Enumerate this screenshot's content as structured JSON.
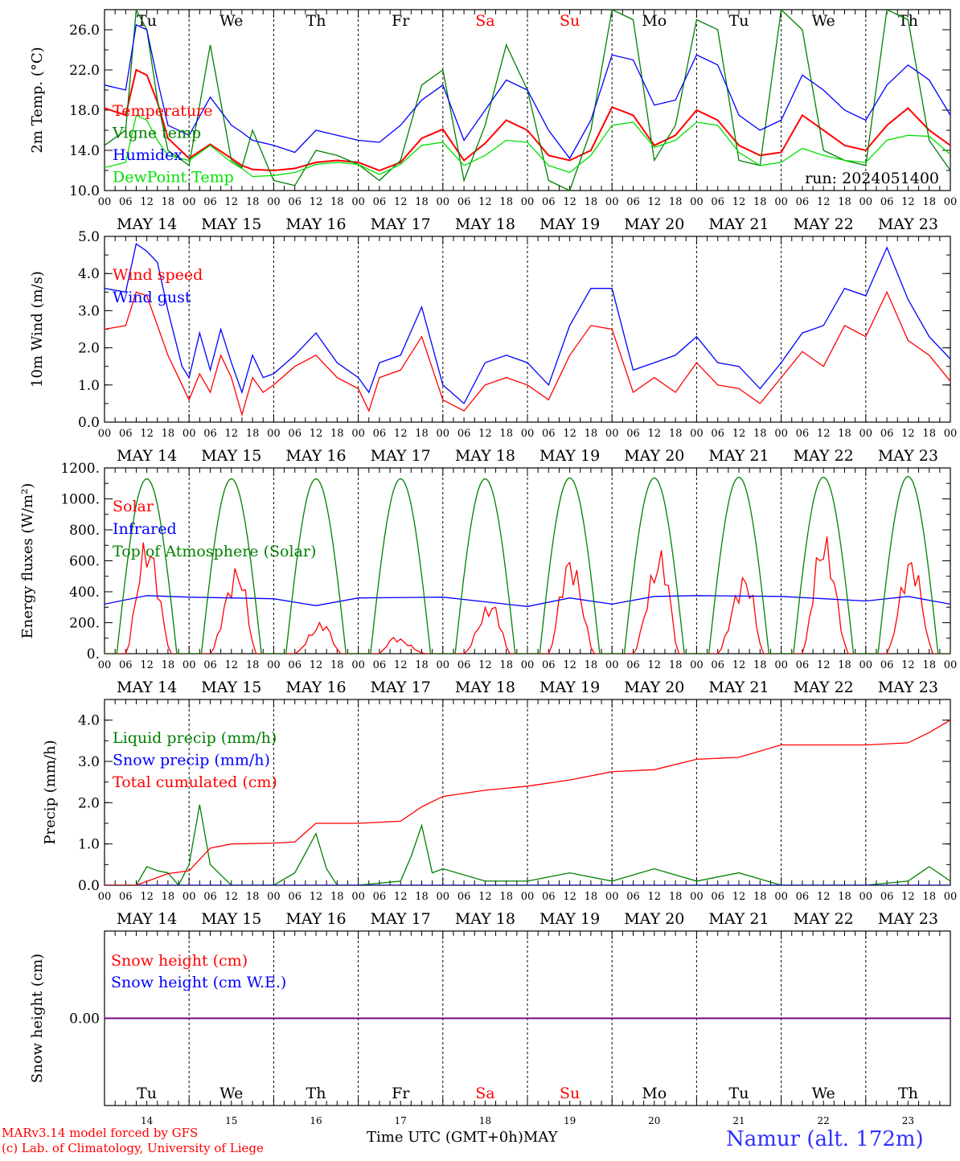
{
  "run_label": "run: 2024051400",
  "days": [
    {
      "dow": "Tu",
      "date": "MAY 14",
      "num": "14",
      "weekend": false
    },
    {
      "dow": "We",
      "date": "MAY 15",
      "num": "15",
      "weekend": false
    },
    {
      "dow": "Th",
      "date": "MAY 16",
      "num": "16",
      "weekend": false
    },
    {
      "dow": "Fr",
      "date": "MAY 17",
      "num": "17",
      "weekend": false
    },
    {
      "dow": "Sa",
      "date": "MAY 18",
      "num": "18",
      "weekend": true
    },
    {
      "dow": "Su",
      "date": "MAY 19",
      "num": "19",
      "weekend": true
    },
    {
      "dow": "Mo",
      "date": "MAY 20",
      "num": "20",
      "weekend": false
    },
    {
      "dow": "Tu",
      "date": "MAY 21",
      "num": "21",
      "weekend": false
    },
    {
      "dow": "We",
      "date": "MAY 22",
      "num": "22",
      "weekend": false
    },
    {
      "dow": "Th",
      "date": "MAY 23",
      "num": "23",
      "weekend": false
    }
  ],
  "hour_ticks": [
    "00",
    "06",
    "12",
    "18"
  ],
  "colors": {
    "red": "#ff0000",
    "green": "#008000",
    "blue": "#0000ff",
    "lightgreen": "#00e000",
    "purple": "#800080",
    "weekend": "#ff0000"
  },
  "footer": {
    "credit1": "MARv3.14 model forced by GFS",
    "credit2": "(c) Lab. of Climatology, University of Liege",
    "xlabel": "Time UTC (GMT+0h)",
    "month": "MAY",
    "station": "Namur (alt. 172m)"
  },
  "chart_data": [
    {
      "type": "line",
      "id": "temp",
      "ylabel": "2m Temp. (°C)",
      "ylim": [
        10,
        28
      ],
      "yticks": [
        "10.0",
        "14.0",
        "18.0",
        "22.0",
        "26.0"
      ],
      "ytick_values": [
        10,
        14,
        18,
        22,
        26
      ],
      "x_unit": "hours since 14 May 00 UTC",
      "series": [
        {
          "name": "Temperature",
          "color": "#ff0000",
          "x": [
            0,
            6,
            9,
            12,
            15,
            18,
            24,
            30,
            36,
            39,
            42,
            48,
            54,
            60,
            66,
            72,
            78,
            84,
            90,
            96,
            102,
            108,
            114,
            120,
            126,
            132,
            138,
            144,
            150,
            156,
            162,
            168,
            174,
            180,
            186,
            192,
            198,
            204,
            210,
            216,
            222,
            228,
            234,
            240
          ],
          "values": [
            18.2,
            17.5,
            22.0,
            21.5,
            18.8,
            15.2,
            13.2,
            14.6,
            13.2,
            12.5,
            12.1,
            12.0,
            12.2,
            12.8,
            13.0,
            12.8,
            12.0,
            12.8,
            15.2,
            16.1,
            13.0,
            14.7,
            17.0,
            16.0,
            13.5,
            13.0,
            14.0,
            18.3,
            17.5,
            14.5,
            15.5,
            18.0,
            17.0,
            14.5,
            13.5,
            13.8,
            17.5,
            16.0,
            14.5,
            14.0,
            16.5,
            18.2,
            16.0,
            14.5
          ]
        },
        {
          "name": "Vigne temp",
          "color": "#008000",
          "x": [
            0,
            6,
            9,
            12,
            15,
            18,
            24,
            30,
            36,
            39,
            42,
            48,
            54,
            60,
            66,
            72,
            78,
            84,
            90,
            96,
            102,
            108,
            114,
            120,
            126,
            132,
            138,
            144,
            150,
            156,
            162,
            168,
            174,
            180,
            186,
            192,
            198,
            204,
            210,
            216,
            222,
            228,
            234,
            240
          ],
          "values": [
            14.5,
            16.0,
            28.0,
            26.0,
            19.0,
            14.0,
            12.5,
            24.5,
            13.0,
            12.3,
            16.0,
            11.0,
            10.5,
            14.0,
            13.5,
            12.6,
            11.0,
            13.0,
            20.5,
            22.0,
            11.0,
            16.5,
            24.5,
            20.0,
            11.0,
            10.0,
            16.0,
            28.0,
            27.0,
            13.0,
            16.5,
            27.0,
            26.0,
            13.0,
            12.5,
            28.0,
            26.0,
            14.0,
            13.0,
            12.5,
            28.0,
            27.0,
            15.0,
            12.0
          ]
        },
        {
          "name": "Humidex",
          "color": "#0000ff",
          "x": [
            0,
            6,
            9,
            12,
            15,
            18,
            24,
            30,
            36,
            39,
            42,
            48,
            54,
            60,
            66,
            72,
            78,
            84,
            90,
            96,
            102,
            108,
            114,
            120,
            126,
            132,
            138,
            144,
            150,
            156,
            162,
            168,
            174,
            180,
            186,
            192,
            198,
            204,
            210,
            216,
            222,
            228,
            234,
            240
          ],
          "values": [
            20.5,
            20.0,
            26.5,
            26.0,
            21.0,
            16.5,
            15.5,
            19.3,
            16.5,
            15.8,
            15.0,
            14.5,
            13.8,
            16.0,
            15.5,
            15.0,
            14.8,
            16.5,
            19.0,
            20.5,
            15.0,
            18.0,
            21.0,
            20.0,
            16.0,
            13.2,
            17.0,
            23.5,
            23.0,
            18.5,
            19.0,
            23.5,
            22.5,
            17.5,
            16.0,
            17.0,
            21.5,
            20.0,
            18.0,
            17.0,
            20.5,
            22.5,
            21.0,
            17.5
          ]
        },
        {
          "name": "DewPoint Temp",
          "color": "#00e000",
          "x": [
            0,
            6,
            9,
            12,
            15,
            18,
            24,
            30,
            36,
            39,
            42,
            48,
            54,
            60,
            66,
            72,
            78,
            84,
            90,
            96,
            102,
            108,
            114,
            120,
            126,
            132,
            138,
            144,
            150,
            156,
            162,
            168,
            174,
            180,
            186,
            192,
            198,
            204,
            210,
            216,
            222,
            228,
            234,
            240
          ],
          "values": [
            12.3,
            12.8,
            17.5,
            17.0,
            15.0,
            13.5,
            13.0,
            14.5,
            12.8,
            12.2,
            11.4,
            11.5,
            11.8,
            12.6,
            12.8,
            12.6,
            11.6,
            12.6,
            14.5,
            14.8,
            12.5,
            13.5,
            15.0,
            14.8,
            12.5,
            11.8,
            13.5,
            16.5,
            16.8,
            14.3,
            15.0,
            16.8,
            16.5,
            13.8,
            12.5,
            12.8,
            14.2,
            13.5,
            13.0,
            12.8,
            15.0,
            15.5,
            15.4,
            13.6
          ]
        }
      ]
    },
    {
      "type": "line",
      "id": "wind",
      "ylabel": "10m Wind (m/s)",
      "ylim": [
        0,
        5
      ],
      "yticks": [
        "0.0",
        "1.0",
        "2.0",
        "3.0",
        "4.0",
        "5.0"
      ],
      "ytick_values": [
        0,
        1,
        2,
        3,
        4,
        5
      ],
      "series": [
        {
          "name": "Wind speed",
          "color": "#ff0000",
          "x": [
            0,
            6,
            9,
            12,
            15,
            18,
            22,
            24,
            27,
            30,
            33,
            36,
            39,
            42,
            45,
            48,
            54,
            60,
            66,
            72,
            75,
            78,
            84,
            90,
            96,
            102,
            108,
            114,
            120,
            126,
            132,
            138,
            144,
            150,
            156,
            162,
            168,
            174,
            180,
            186,
            192,
            198,
            204,
            210,
            216,
            222,
            228,
            234,
            240
          ],
          "values": [
            2.5,
            2.6,
            3.5,
            3.4,
            2.6,
            1.8,
            1.0,
            0.6,
            1.3,
            0.8,
            1.8,
            1.2,
            0.2,
            1.2,
            0.8,
            1.0,
            1.5,
            1.8,
            1.2,
            0.9,
            0.3,
            1.2,
            1.4,
            2.3,
            0.6,
            0.3,
            1.0,
            1.2,
            1.0,
            0.6,
            1.8,
            2.6,
            2.5,
            0.8,
            1.2,
            0.8,
            1.6,
            1.0,
            0.9,
            0.5,
            1.2,
            1.9,
            1.5,
            2.6,
            2.3,
            3.5,
            2.2,
            1.8,
            1.1
          ]
        },
        {
          "name": "Wind gust",
          "color": "#0000ff",
          "x": [
            0,
            6,
            9,
            12,
            15,
            18,
            22,
            24,
            27,
            30,
            33,
            36,
            39,
            42,
            45,
            48,
            54,
            60,
            66,
            72,
            75,
            78,
            84,
            90,
            96,
            102,
            108,
            114,
            120,
            126,
            132,
            138,
            144,
            150,
            156,
            162,
            168,
            174,
            180,
            186,
            192,
            198,
            204,
            210,
            216,
            222,
            228,
            234,
            240
          ],
          "values": [
            3.6,
            3.5,
            4.8,
            4.6,
            4.3,
            3.0,
            1.5,
            1.2,
            2.4,
            1.4,
            2.5,
            1.6,
            0.8,
            1.8,
            1.2,
            1.3,
            1.8,
            2.4,
            1.6,
            1.2,
            0.8,
            1.6,
            1.8,
            3.1,
            1.0,
            0.5,
            1.6,
            1.8,
            1.6,
            1.0,
            2.6,
            3.6,
            3.6,
            1.4,
            1.6,
            1.8,
            2.3,
            1.6,
            1.5,
            0.9,
            1.6,
            2.4,
            2.6,
            3.6,
            3.4,
            4.7,
            3.3,
            2.3,
            1.7
          ]
        }
      ]
    },
    {
      "type": "line",
      "id": "energy",
      "ylabel": "Energy fluxes (W/m²)",
      "ylim": [
        0,
        1200
      ],
      "yticks": [
        "0.",
        "200.",
        "400.",
        "600.",
        "800.",
        "1000.",
        "1200."
      ],
      "ytick_values": [
        0,
        200,
        400,
        600,
        800,
        1000,
        1200
      ],
      "series": [
        {
          "name": "Solar",
          "color": "#ff0000",
          "daily_peak": [
            760,
            580,
            210,
            110,
            340,
            650,
            680,
            530,
            790,
            650
          ],
          "daily_peak_hour": [
            12,
            14,
            14,
            10,
            14,
            12,
            14,
            14,
            12,
            13
          ]
        },
        {
          "name": "Infrared",
          "color": "#0000ff",
          "x": [
            0,
            12,
            24,
            48,
            60,
            72,
            96,
            120,
            132,
            144,
            156,
            168,
            192,
            216,
            228,
            240
          ],
          "values": [
            320,
            375,
            365,
            355,
            310,
            360,
            365,
            305,
            360,
            320,
            370,
            375,
            370,
            340,
            370,
            320
          ]
        },
        {
          "name": "Top of Atmosphere (Solar)",
          "color": "#008000",
          "daily_peak": [
            1130,
            1130,
            1130,
            1130,
            1130,
            1135,
            1135,
            1140,
            1140,
            1145
          ],
          "sunrise_hour": 3.5,
          "sunset_hour": 20.5
        }
      ]
    },
    {
      "type": "line",
      "id": "precip",
      "ylabel": "Precip (mm/h)",
      "ylim": [
        0,
        4.5
      ],
      "yticks": [
        "0.0",
        "1.0",
        "2.0",
        "3.0",
        "4.0"
      ],
      "ytick_values": [
        0,
        1,
        2,
        3,
        4
      ],
      "series": [
        {
          "name": "Liquid precip (mm/h)",
          "color": "#008000",
          "x": [
            0,
            9,
            12,
            15,
            18,
            21,
            24,
            27,
            30,
            33,
            36,
            39,
            42,
            48,
            54,
            60,
            63,
            66,
            72,
            84,
            87,
            90,
            93,
            96,
            108,
            120,
            132,
            144,
            156,
            168,
            180,
            192,
            216,
            228,
            234,
            240
          ],
          "values": [
            0,
            0,
            0.45,
            0.35,
            0.3,
            0,
            0.5,
            1.95,
            0.5,
            0.25,
            0,
            0,
            0,
            0,
            0.3,
            1.25,
            0.4,
            0,
            0,
            0.1,
            0.7,
            1.45,
            0.3,
            0.4,
            0.1,
            0.1,
            0.3,
            0.1,
            0.4,
            0.1,
            0.3,
            0,
            0,
            0.1,
            0.45,
            0.1
          ]
        },
        {
          "name": "Snow precip (mm/h)",
          "color": "#0000ff",
          "x": [
            0,
            240
          ],
          "values": [
            0,
            0
          ]
        },
        {
          "name": "Total cumulated (cm)",
          "color": "#ff0000",
          "x": [
            0,
            9,
            18,
            24,
            30,
            36,
            48,
            54,
            60,
            66,
            72,
            84,
            90,
            96,
            108,
            120,
            132,
            144,
            156,
            168,
            180,
            192,
            216,
            228,
            234,
            240
          ],
          "values": [
            0,
            0,
            0.28,
            0.35,
            0.9,
            1.0,
            1.02,
            1.05,
            1.5,
            1.5,
            1.5,
            1.55,
            1.9,
            2.15,
            2.3,
            2.4,
            2.55,
            2.75,
            2.8,
            3.05,
            3.1,
            3.4,
            3.4,
            3.45,
            3.7,
            4.0
          ]
        }
      ]
    },
    {
      "type": "line",
      "id": "snow",
      "ylabel": "Snow height (cm)",
      "ylim": [
        -1,
        1
      ],
      "yticks": [
        "0.00"
      ],
      "ytick_values": [
        0
      ],
      "series": [
        {
          "name": "Snow height (cm)",
          "color": "#ff0000",
          "x": [
            0,
            240
          ],
          "values": [
            0,
            0
          ]
        },
        {
          "name": "Snow height (cm W.E.)",
          "color": "#0000ff",
          "x": [
            0,
            240
          ],
          "values": [
            0,
            0
          ]
        }
      ]
    }
  ]
}
